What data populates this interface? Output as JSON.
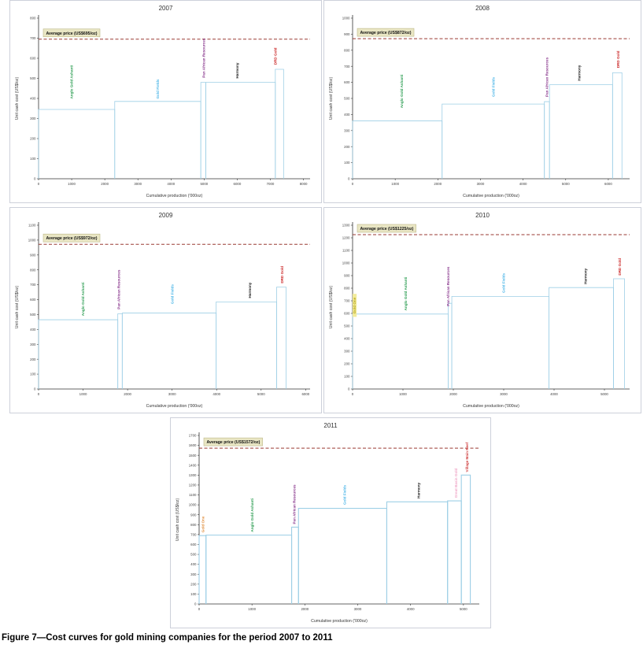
{
  "page": {
    "caption": "Figure 7—Cost curves for gold mining companies for the period 2007 to 2011"
  },
  "shared": {
    "x_axis_label": "Cumulative production ('000oz)",
    "y_axis_label": "Unit cash cost (US$/oz)",
    "step_line_color": "#9ecfe6",
    "avg_line_color": "#9a3a33",
    "avg_box_bg": "#e9e6c4",
    "avg_box_border": "#bdb787",
    "company_colors": {
      "anglo_gold_ashanti": "#2e9e54",
      "gold_fields": "#52b8e8",
      "pan_african_resources": "#8b3a8f",
      "harmony": "#1a1a1a",
      "drd_gold": "#cc2a2a",
      "gold_one_2010": "#b8a820",
      "gold_one_2011": "#e09040",
      "great_basin_gold": "#f0a8c8",
      "village_main_reef": "#d04040"
    }
  },
  "chart_data": [
    {
      "type": "step",
      "title": "2007",
      "avg_label": "Average price (US$695/oz)",
      "avg_price": 695,
      "ylim": [
        0,
        800
      ],
      "y_tick": 100,
      "x_tick_max": 8000,
      "x_tick": 1000,
      "x_plot_max": 8200,
      "xlabel": "Cumulative production ('000oz)",
      "ylabel": "Unit cash cost (US$/oz)",
      "line_width": 0.8,
      "steps": [
        {
          "company": "Anglo Gold Ashanti",
          "x0": 0,
          "x1": 2300,
          "cost": 345
        },
        {
          "company": "Gold Fields",
          "x0": 2300,
          "x1": 4900,
          "cost": 385
        },
        {
          "company": "Pan African Resources",
          "x0": 4900,
          "x1": 5050,
          "cost": 480
        },
        {
          "company": "Harmony",
          "x0": 5050,
          "x1": 7150,
          "cost": 480
        },
        {
          "company": "DRD Gold",
          "x0": 7150,
          "x1": 7400,
          "cost": 545
        }
      ],
      "labels": [
        {
          "text": "Anglo Gold Ashanti",
          "color": "#2e9e54",
          "x": 1000,
          "y0": 390
        },
        {
          "text": "Gold Fields",
          "color": "#52b8e8",
          "x": 3600,
          "y0": 390
        },
        {
          "text": "Pan African Resources",
          "color": "#8b3a8f",
          "x": 4990,
          "y0": 495
        },
        {
          "text": "Harmony",
          "color": "#1a1a1a",
          "x": 6000,
          "y0": 492
        },
        {
          "text": "DRD Gold",
          "color": "#cc2a2a",
          "x": 7150,
          "y0": 560
        }
      ]
    },
    {
      "type": "step",
      "title": "2008",
      "avg_label": "Average price (US$872/oz)",
      "avg_price": 872,
      "ylim": [
        0,
        1000
      ],
      "y_tick": 100,
      "x_tick_max": 6000,
      "x_tick": 1000,
      "x_plot_max": 6500,
      "xlabel": "Cumulative production ('000oz)",
      "ylabel": "Unit cash cost (US$/oz)",
      "line_width": 0.8,
      "steps": [
        {
          "company": "Anglo Gold Ashanti",
          "x0": 0,
          "x1": 2100,
          "cost": 360
        },
        {
          "company": "Gold Fields",
          "x0": 2100,
          "x1": 4500,
          "cost": 465
        },
        {
          "company": "Pan African Resources",
          "x0": 4500,
          "x1": 4620,
          "cost": 480
        },
        {
          "company": "Harmony",
          "x0": 4620,
          "x1": 6100,
          "cost": 585
        },
        {
          "company": "DRD Gold",
          "x0": 6100,
          "x1": 6320,
          "cost": 660
        }
      ],
      "labels": [
        {
          "text": "Anglo Gold Ashanti",
          "color": "#2e9e54",
          "x": 1150,
          "y0": 430
        },
        {
          "text": "Gold Fields",
          "color": "#52b8e8",
          "x": 3300,
          "y0": 500
        },
        {
          "text": "Pan African Resources",
          "color": "#8b3a8f",
          "x": 4560,
          "y0": 500
        },
        {
          "text": "Harmony",
          "color": "#1a1a1a",
          "x": 5320,
          "y0": 600
        },
        {
          "text": "DRD Gold",
          "color": "#cc2a2a",
          "x": 6230,
          "y0": 680
        }
      ]
    },
    {
      "type": "step",
      "title": "2009",
      "avg_label": "Average price (US$972/oz)",
      "avg_price": 972,
      "ylim": [
        0,
        1100
      ],
      "y_tick": 100,
      "x_tick_max": 6000,
      "x_tick": 1000,
      "x_plot_max": 6100,
      "xlabel": "Cumulative production ('000oz)",
      "ylabel": "Unit cash cost (US$/oz)",
      "line_width": 0.8,
      "steps": [
        {
          "company": "Anglo Gold Ashanti",
          "x0": 0,
          "x1": 1780,
          "cost": 465
        },
        {
          "company": "Pan African Resources",
          "x0": 1780,
          "x1": 1880,
          "cost": 505
        },
        {
          "company": "Gold Fields",
          "x0": 1880,
          "x1": 3990,
          "cost": 510
        },
        {
          "company": "Harmony",
          "x0": 3990,
          "x1": 5350,
          "cost": 585
        },
        {
          "company": "DRD Gold",
          "x0": 5350,
          "x1": 5560,
          "cost": 685
        }
      ],
      "labels": [
        {
          "text": "Anglo Gold Ashanti",
          "color": "#2e9e54",
          "x": 1000,
          "y0": 480
        },
        {
          "text": "Pan African Resources",
          "color": "#8b3a8f",
          "x": 1800,
          "y0": 525
        },
        {
          "text": "Gold Fields",
          "color": "#52b8e8",
          "x": 3000,
          "y0": 560
        },
        {
          "text": "Harmony",
          "color": "#1a1a1a",
          "x": 4750,
          "y0": 600
        },
        {
          "text": "DRD Gold",
          "color": "#cc2a2a",
          "x": 5470,
          "y0": 700
        }
      ]
    },
    {
      "type": "step",
      "title": "2010",
      "avg_label": "Average price (US$1225/oz)",
      "avg_price": 1225,
      "ylim": [
        0,
        1300
      ],
      "y_tick": 100,
      "x_tick_max": 5000,
      "x_tick": 1000,
      "x_plot_max": 5500,
      "xlabel": "Cumulative production ('000oz)",
      "ylabel": "Unit cash cost (US$/oz)",
      "line_width": 0.8,
      "steps": [
        {
          "company": "Anglo Gold Ashanti",
          "x0": 0,
          "x1": 1900,
          "cost": 595
        },
        {
          "company": "Pan African Resources",
          "x0": 1900,
          "x1": 1970,
          "cost": 680
        },
        {
          "company": "Gold Fields",
          "x0": 1970,
          "x1": 3900,
          "cost": 735
        },
        {
          "company": "Harmony",
          "x0": 3900,
          "x1": 5180,
          "cost": 805
        },
        {
          "company": "DRD Gold",
          "x0": 5180,
          "x1": 5400,
          "cost": 875
        }
      ],
      "labels": [
        {
          "text": "Gold One",
          "color": "#b8a820",
          "x": 40,
          "y0": 585,
          "highlight": "#f2eb9b"
        },
        {
          "text": "Anglo Gold Ashanti",
          "color": "#2e9e54",
          "x": 1050,
          "y0": 610
        },
        {
          "text": "Pan African Resources",
          "color": "#8b3a8f",
          "x": 1900,
          "y0": 645
        },
        {
          "text": "Gold Fields",
          "color": "#52b8e8",
          "x": 3000,
          "y0": 750
        },
        {
          "text": "Harmony",
          "color": "#1a1a1a",
          "x": 4620,
          "y0": 820
        },
        {
          "text": "DRD Gold",
          "color": "#cc2a2a",
          "x": 5300,
          "y0": 890
        }
      ]
    },
    {
      "type": "step",
      "title": "2011",
      "avg_label": "Average price (US$1572/oz)",
      "avg_price": 1572,
      "ylim": [
        0,
        1700
      ],
      "y_tick": 100,
      "x_tick_max": 5000,
      "x_tick": 1000,
      "x_plot_max": 5300,
      "xlabel": "Cumulative production ('000oz)",
      "ylabel": "Unit cash cost (US$/oz)",
      "line_width": 1.1,
      "steps": [
        {
          "company": "Gold One",
          "x0": 0,
          "x1": 130,
          "cost": 690
        },
        {
          "company": "Anglo Gold Ashanti",
          "x0": 130,
          "x1": 1750,
          "cost": 695
        },
        {
          "company": "Pan African Resources",
          "x0": 1750,
          "x1": 1880,
          "cost": 775
        },
        {
          "company": "Gold Fields",
          "x0": 1880,
          "x1": 3550,
          "cost": 965
        },
        {
          "company": "Harmony",
          "x0": 3550,
          "x1": 4700,
          "cost": 1030
        },
        {
          "company": "Great Basin Gold",
          "x0": 4700,
          "x1": 4960,
          "cost": 1040
        },
        {
          "company": "Village Main Reef",
          "x0": 4960,
          "x1": 5130,
          "cost": 1300
        }
      ],
      "labels": [
        {
          "text": "Gold One",
          "color": "#e09040",
          "x": 70,
          "y0": 705
        },
        {
          "text": "Anglo Gold Ashanti",
          "color": "#2e9e54",
          "x": 1000,
          "y0": 710
        },
        {
          "text": "Pan African Resources",
          "color": "#8b3a8f",
          "x": 1800,
          "y0": 790
        },
        {
          "text": "Gold Fields",
          "color": "#52b8e8",
          "x": 2750,
          "y0": 985
        },
        {
          "text": "Harmony",
          "color": "#1a1a1a",
          "x": 4150,
          "y0": 1050
        },
        {
          "text": "Great Basin Gold",
          "color": "#f0a8c8",
          "x": 4860,
          "y0": 1055
        },
        {
          "text": "Village Main Reef",
          "color": "#d04040",
          "x": 5070,
          "y0": 1315
        }
      ]
    }
  ]
}
